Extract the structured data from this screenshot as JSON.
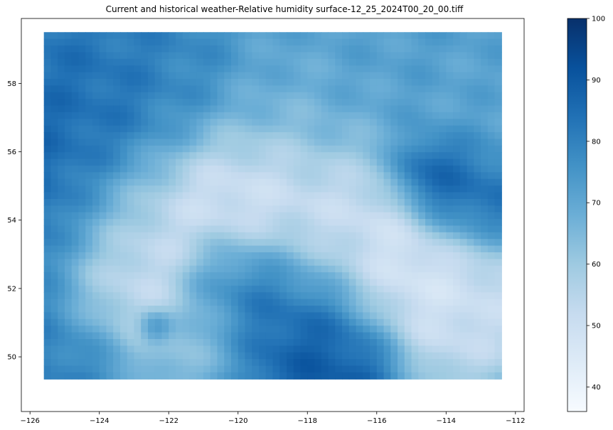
{
  "chart_data": {
    "type": "heatmap",
    "title": "Current and historical weather-Relative humidity surface-12_25_2024T00_20_00.tiff",
    "xlabel": "",
    "ylabel": "",
    "xlim": [
      -126.25,
      -111.75
    ],
    "ylim": [
      48.4,
      59.9
    ],
    "data_extent": {
      "x": [
        -125.6,
        -112.4
      ],
      "y": [
        49.35,
        59.5
      ]
    },
    "x_ticks": [
      -126,
      -124,
      -122,
      -120,
      -118,
      -116,
      -114,
      -112
    ],
    "y_ticks": [
      50,
      52,
      54,
      56,
      58
    ],
    "x_tick_labels": [
      "−126",
      "−124",
      "−122",
      "−120",
      "−118",
      "−116",
      "−114",
      "−112"
    ],
    "y_tick_labels": [
      "50",
      "52",
      "54",
      "56",
      "58"
    ],
    "colorbar": {
      "cmap": "Blues",
      "range": [
        36,
        100
      ],
      "ticks": [
        40,
        50,
        60,
        70,
        80,
        90,
        100
      ],
      "tick_labels": [
        "40",
        "50",
        "60",
        "70",
        "80",
        "90",
        "100"
      ]
    },
    "grid": false,
    "legend": "none",
    "field_features": [
      {
        "lon": -125.3,
        "lat": 54.5,
        "value": 92,
        "spread": 1.8
      },
      {
        "lon": -124.5,
        "lat": 57.5,
        "value": 85,
        "spread": 1.5
      },
      {
        "lon": -122.8,
        "lat": 53.4,
        "value": 42,
        "spread": 1.6
      },
      {
        "lon": -123.2,
        "lat": 51.8,
        "value": 48,
        "spread": 1.0
      },
      {
        "lon": -119.8,
        "lat": 54.9,
        "value": 42,
        "spread": 1.2
      },
      {
        "lon": -117.5,
        "lat": 54.3,
        "value": 45,
        "spread": 1.4
      },
      {
        "lon": -115.5,
        "lat": 52.5,
        "value": 40,
        "spread": 1.3
      },
      {
        "lon": -113.6,
        "lat": 51.5,
        "value": 48,
        "spread": 1.2
      },
      {
        "lon": -118.2,
        "lat": 51.2,
        "value": 88,
        "spread": 1.5
      },
      {
        "lon": -117.2,
        "lat": 50.0,
        "value": 93,
        "spread": 1.0
      },
      {
        "lon": -120.2,
        "lat": 52.0,
        "value": 84,
        "spread": 1.0
      },
      {
        "lon": -116.2,
        "lat": 58.6,
        "value": 72,
        "spread": 2.0
      },
      {
        "lon": -113.5,
        "lat": 54.8,
        "value": 90,
        "spread": 1.0
      },
      {
        "lon": -114.5,
        "lat": 55.4,
        "value": 94,
        "spread": 0.6
      },
      {
        "lon": -122.4,
        "lat": 50.9,
        "value": 97,
        "spread": 0.3
      },
      {
        "lon": -121.2,
        "lat": 50.6,
        "value": 60,
        "spread": 0.9
      },
      {
        "lon": -124.8,
        "lat": 50.4,
        "value": 82,
        "spread": 1.1
      },
      {
        "lon": -118.8,
        "lat": 57.0,
        "value": 65,
        "spread": 1.5
      },
      {
        "lon": -121.5,
        "lat": 58.3,
        "value": 80,
        "spread": 1.3
      },
      {
        "lon": -112.8,
        "lat": 57.2,
        "value": 70,
        "spread": 1.2
      }
    ]
  }
}
